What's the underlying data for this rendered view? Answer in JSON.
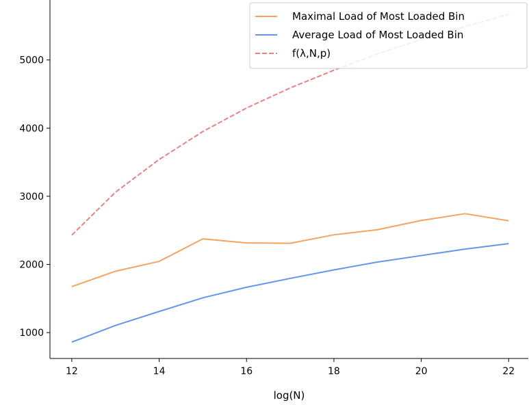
{
  "chart_data": {
    "type": "line",
    "title": "",
    "xlabel": "log(N)",
    "ylabel": "",
    "x": [
      12,
      13,
      14,
      15,
      16,
      17,
      18,
      19,
      20,
      21,
      22
    ],
    "xlim": [
      11.5,
      22.45
    ],
    "ylim": [
      620,
      5880
    ],
    "xticks": [
      12,
      14,
      16,
      18,
      20,
      22
    ],
    "yticks": [
      1000,
      2000,
      3000,
      4000,
      5000
    ],
    "grid": false,
    "legend_position": "top-right",
    "series": [
      {
        "name": "Maximal Load of Most Loaded Bin",
        "color": "#f4a460",
        "style": "solid",
        "values": [
          1675,
          1900,
          2045,
          2375,
          2315,
          2310,
          2435,
          2510,
          2645,
          2745,
          2640
        ]
      },
      {
        "name": "Average Load of Most Loaded Bin",
        "color": "#6495ed",
        "style": "solid",
        "values": [
          860,
          1105,
          1310,
          1510,
          1665,
          1795,
          1920,
          2035,
          2130,
          2225,
          2305
        ]
      },
      {
        "name": "f(λ,N,p)",
        "color": "#f08080",
        "style": "dashed",
        "values": [
          2430,
          3060,
          3540,
          3950,
          4295,
          4590,
          4850,
          5090,
          5300,
          5490,
          5670
        ]
      }
    ]
  }
}
